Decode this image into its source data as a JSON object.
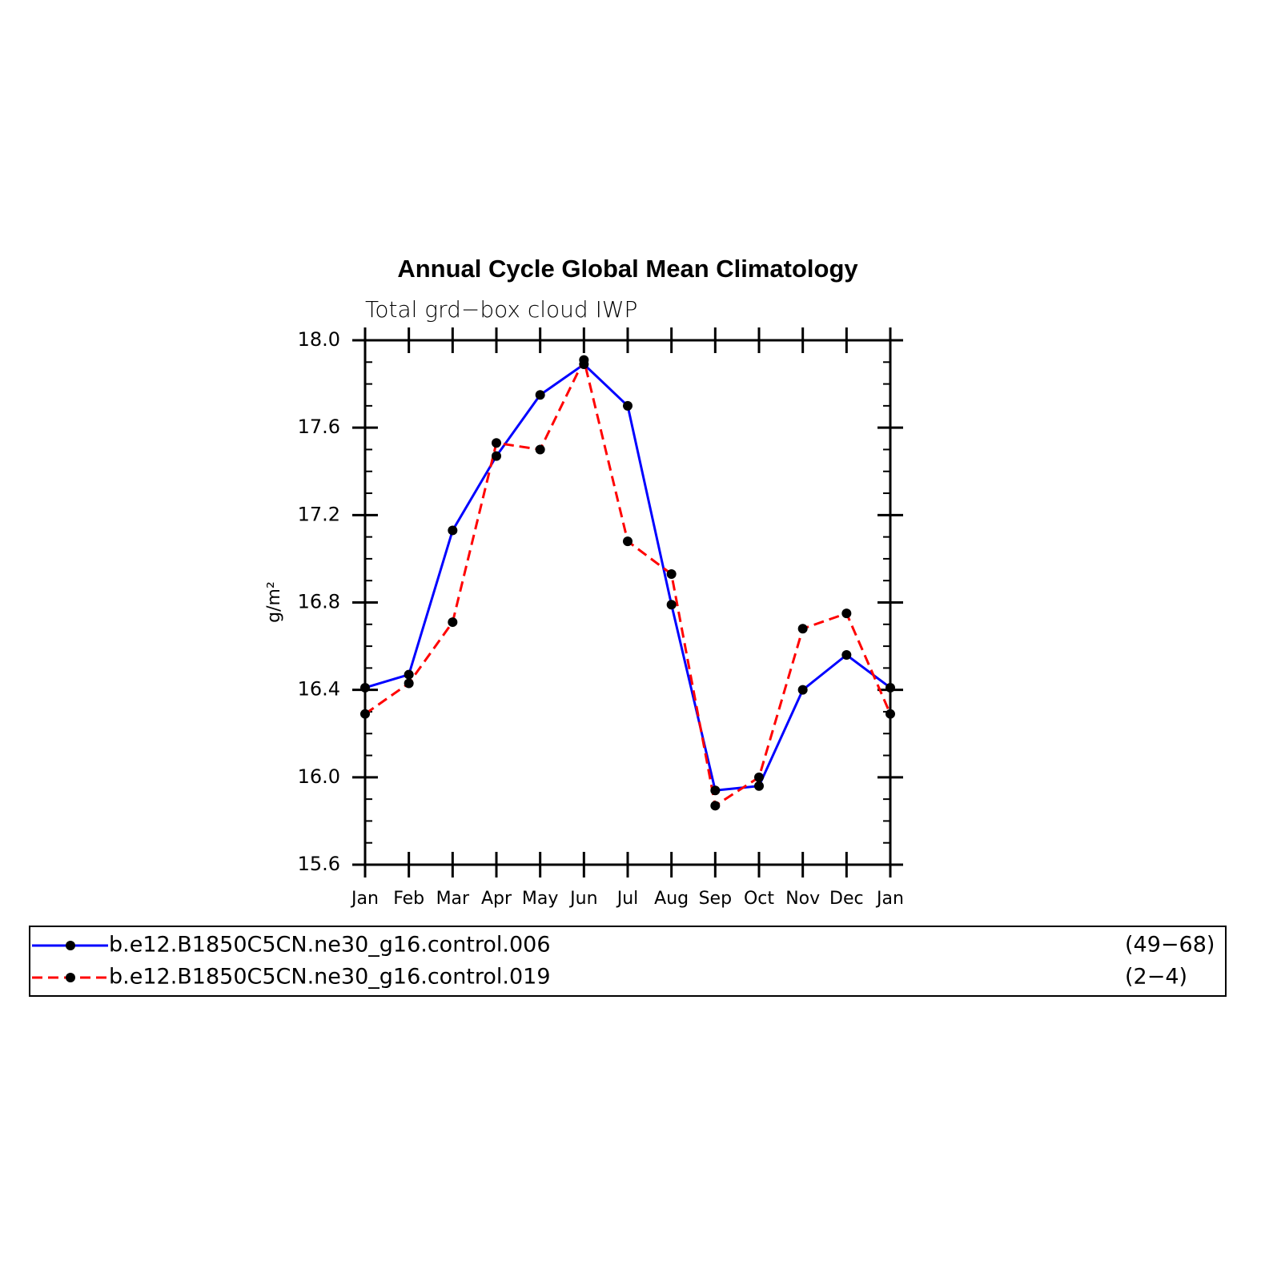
{
  "chart_data": {
    "type": "line",
    "title": "Annual Cycle Global Mean Climatology",
    "subtitle": "Total grd−box cloud IWP",
    "y_label": "g/m²",
    "categories": [
      "Jan",
      "Feb",
      "Mar",
      "Apr",
      "May",
      "Jun",
      "Jul",
      "Aug",
      "Sep",
      "Oct",
      "Nov",
      "Dec",
      "Jan"
    ],
    "ylim": [
      15.6,
      18.0
    ],
    "yticks": [
      {
        "value": 15.6,
        "label": "15.6"
      },
      {
        "value": 16,
        "label": "16.0"
      },
      {
        "value": 16.4,
        "label": "16.4"
      },
      {
        "value": 16.8,
        "label": "16.8"
      },
      {
        "value": 17.2,
        "label": "17.2"
      },
      {
        "value": 17.6,
        "label": "17.6"
      },
      {
        "value": 18,
        "label": "18.0"
      }
    ],
    "series": [
      {
        "name": "b.e12.B1850C5CN.ne30_g16.control.006",
        "note": "(49−68)",
        "color": "#0000ff",
        "dash": false,
        "values": [
          16.41,
          16.47,
          17.13,
          17.47,
          17.75,
          17.89,
          17.7,
          16.79,
          15.94,
          15.96,
          16.4,
          16.56,
          16.41
        ]
      },
      {
        "name": "b.e12.B1850C5CN.ne30_g16.control.019",
        "note": "(2−4)",
        "color": "#ff0000",
        "dash": true,
        "values": [
          16.29,
          16.43,
          16.71,
          17.53,
          17.5,
          17.91,
          17.08,
          16.93,
          15.87,
          16.0,
          16.68,
          16.75,
          16.29
        ]
      }
    ]
  }
}
